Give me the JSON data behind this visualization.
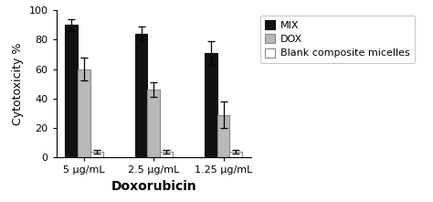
{
  "categories": [
    "5 μg/mL",
    "2.5 μg/mL",
    "1.25 μg/mL"
  ],
  "series": [
    {
      "label": "MIX",
      "values": [
        90,
        84,
        71
      ],
      "errors": [
        4,
        5,
        8
      ],
      "color": "#111111",
      "edgecolor": "#111111"
    },
    {
      "label": "DOX",
      "values": [
        60,
        46,
        29
      ],
      "errors": [
        8,
        5,
        9
      ],
      "color": "#b8b8b8",
      "edgecolor": "#888888"
    },
    {
      "label": "Blank composite micelles",
      "values": [
        4,
        4,
        4
      ],
      "errors": [
        1,
        1,
        1
      ],
      "color": "#ffffff",
      "edgecolor": "#888888"
    }
  ],
  "ylabel": "Cytotoxicity %",
  "xlabel": "Doxorubicin",
  "ylim": [
    0,
    100
  ],
  "yticks": [
    0,
    20,
    40,
    60,
    80,
    100
  ],
  "bar_width": 0.18,
  "background_color": "#ffffff",
  "capsize": 3,
  "xlabel_fontsize": 10,
  "ylabel_fontsize": 9,
  "tick_fontsize": 8,
  "legend_fontsize": 8
}
